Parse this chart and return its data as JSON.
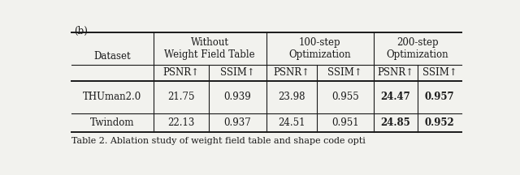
{
  "title_label": "(b)",
  "caption": "Table 2. Ablation study of weight field table and shape code opti",
  "col_groups": [
    {
      "label": "Without\nWeight Field Table",
      "span": 2
    },
    {
      "label": "100-step\nOptimization",
      "span": 2
    },
    {
      "label": "200-step\nOptimization",
      "span": 2
    }
  ],
  "sub_headers": [
    "PSNR↑",
    "SSIM↑",
    "PSNR↑",
    "SSIM↑",
    "PSNR↑",
    "SSIM↑"
  ],
  "row_header": "Dataset",
  "rows": [
    {
      "name": "THUman2.0",
      "values": [
        "21.75",
        "0.939",
        "23.98",
        "0.955",
        "24.47",
        "0.957"
      ],
      "bold": [
        false,
        false,
        false,
        false,
        true,
        true
      ]
    },
    {
      "name": "Twindom",
      "values": [
        "22.13",
        "0.937",
        "24.51",
        "0.951",
        "24.85",
        "0.952"
      ],
      "bold": [
        false,
        false,
        false,
        false,
        true,
        true
      ]
    }
  ],
  "bg_color": "#f2f2ee",
  "text_color": "#1a1a1a",
  "fontsize": 8.5,
  "fontfamily": "DejaVu Serif",
  "fig_width": 6.4,
  "fig_height": 2.16,
  "dpi": 100
}
